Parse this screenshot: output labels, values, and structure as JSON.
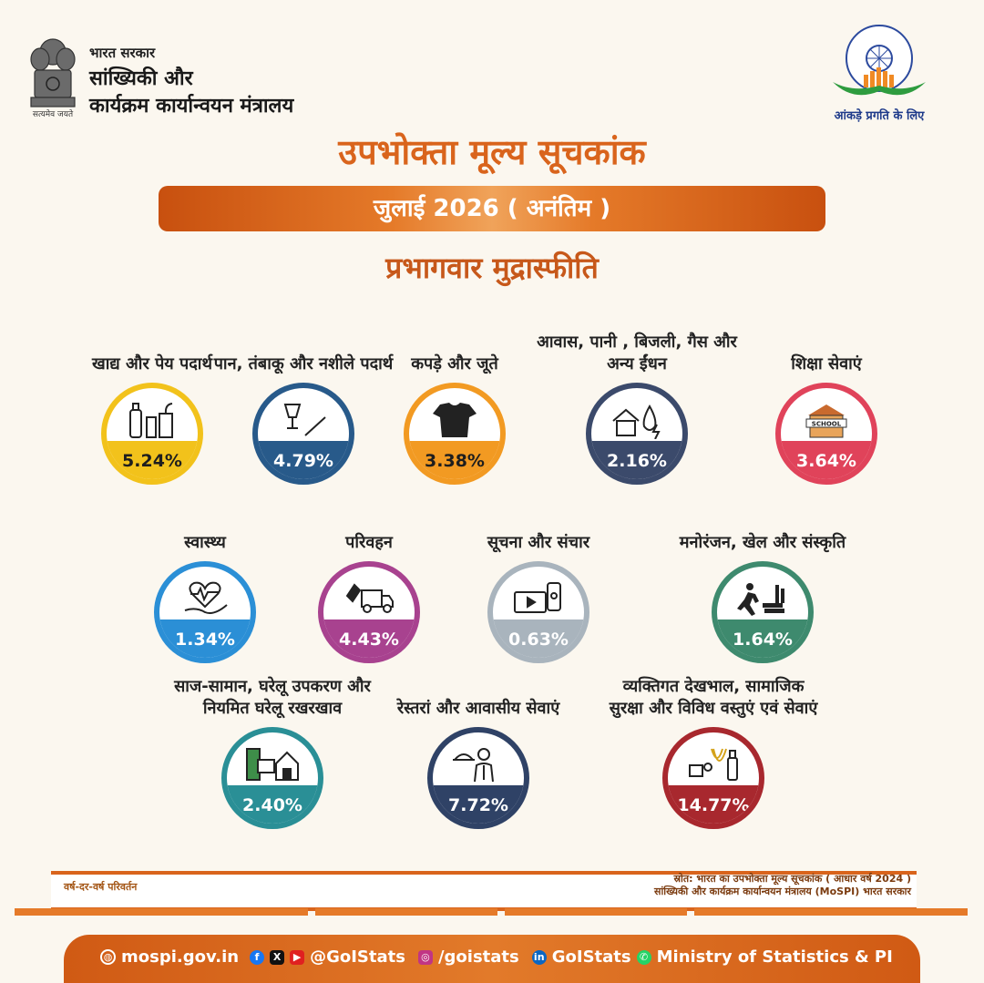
{
  "header": {
    "gov_line": "भारत सरकार",
    "ministry_line1": "सांख्यिकी और",
    "ministry_line2": "कार्यक्रम कार्यान्वयन मंत्रालय",
    "emblem_motto": "सत्यमेव जयते",
    "mospi_tagline": "आंकड़े प्रगति के लिए"
  },
  "title": "उपभोक्ता मूल्य सूचकांक",
  "period": "जुलाई 2026 ( अनंतिम )",
  "subtitle": "प्रभागवार मुद्रास्फीति",
  "divisions": [
    {
      "label": "खाद्य और पेय पदार्थ",
      "value": "5.24%",
      "value_num": 5.24,
      "color": "#f2c21b",
      "text_color": "#1e1e1e",
      "icon": "food-bottles-icon"
    },
    {
      "label": "पान, तंबाकू और नशीले पदार्थ",
      "value": "4.79%",
      "value_num": 4.79,
      "color": "#285a8a",
      "text_color": "#ffffff",
      "icon": "glass-cigarette-icon"
    },
    {
      "label": "कपड़े और जूते",
      "value": "3.38%",
      "value_num": 3.38,
      "color": "#f29a22",
      "text_color": "#1e1e1e",
      "icon": "shirt-shoe-icon"
    },
    {
      "label": "आवास, पानी , बिजली, गैस और अन्य ईंधन",
      "value": "2.16%",
      "value_num": 2.16,
      "color": "#3b4a6b",
      "text_color": "#ffffff",
      "icon": "house-water-power-icon"
    },
    {
      "label": "शिक्षा सेवाएं",
      "value": "3.64%",
      "value_num": 3.64,
      "color": "#e0435a",
      "text_color": "#ffffff",
      "icon": "school-icon"
    },
    {
      "label": "स्वास्थ्य",
      "value": "1.34%",
      "value_num": 1.34,
      "color": "#2b8fd6",
      "text_color": "#ffffff",
      "icon": "health-heart-hand-icon"
    },
    {
      "label": "परिवहन",
      "value": "4.43%",
      "value_num": 4.43,
      "color": "#a8428f",
      "text_color": "#ffffff",
      "icon": "fuel-truck-icon"
    },
    {
      "label": "सूचना और संचार",
      "value": "0.63%",
      "value_num": 0.63,
      "color": "#a9b4bd",
      "text_color": "#ffffff",
      "icon": "tv-phone-icon"
    },
    {
      "label": "मनोरंजन, खेल और संस्कृति",
      "value": "1.64%",
      "value_num": 1.64,
      "color": "#3e8a6e",
      "text_color": "#ffffff",
      "icon": "runner-books-icon"
    },
    {
      "label": "साज-सामान, घरेलू उपकरण और नियमित घरेलू रखरखाव",
      "value": "2.40%",
      "value_num": 2.4,
      "color": "#2a8f96",
      "text_color": "#ffffff",
      "icon": "fridge-computer-home-icon"
    },
    {
      "label": "रेस्तरां और आवासीय सेवाएं",
      "value": "7.72%",
      "value_num": 7.72,
      "color": "#2f4266",
      "text_color": "#ffffff",
      "icon": "waiter-icon"
    },
    {
      "label": "व्यक्तिगत देखभाल, सामाजिक सुरक्षा और विविध वस्तुएं एवं सेवाएं",
      "value": "14.77%",
      "value_num": 14.77,
      "color": "#a8282e",
      "text_color": "#ffffff",
      "icon": "jewellery-care-icon"
    }
  ],
  "notes": {
    "left": "वर्ष-दर-वर्ष परिवर्तन",
    "source_line1": "स्रोत: भारत का उपभोक्ता मूल्य सूचकांक ( आधार वर्ष 2024 )",
    "source_line2": "सांख्यिकी और कार्यक्रम कार्यान्वयन मंत्रालय (MoSPI) भारत सरकार"
  },
  "footer": {
    "website": "mospi.gov.in",
    "handle_fb_x_yt": "@GoIStats",
    "handle_instagram": "/goistats",
    "handle_linkedin": "GoIStats",
    "handle_whatsapp": "Ministry of Statistics & PI"
  }
}
